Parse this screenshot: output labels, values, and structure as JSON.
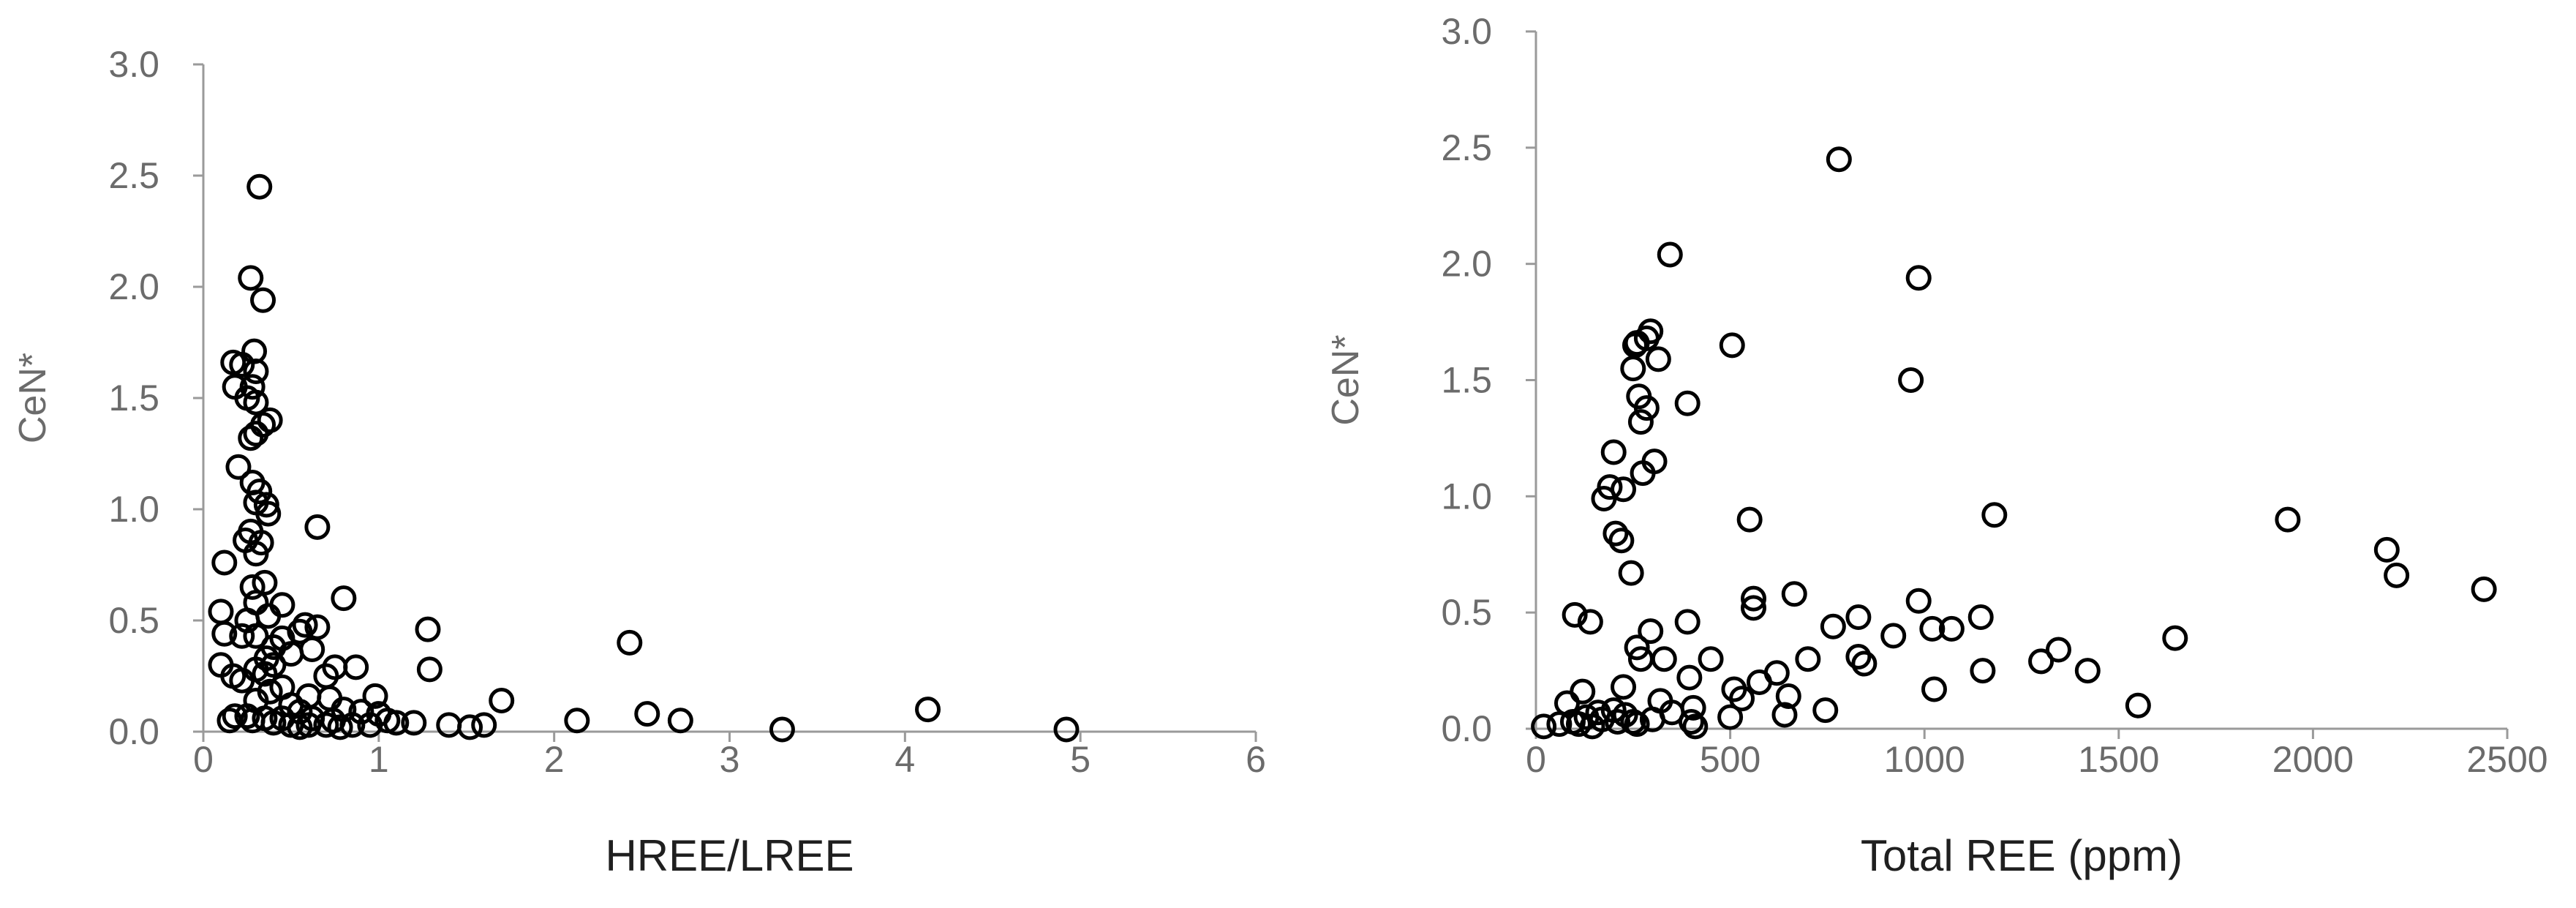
{
  "chart_data": [
    {
      "type": "scatter",
      "title": "",
      "xlabel": "HREE/LREE",
      "ylabel": "CeN*",
      "xlim": [
        0,
        6
      ],
      "ylim": [
        0,
        3
      ],
      "x_ticks": [
        "0",
        "1",
        "2",
        "3",
        "4",
        "5",
        "6"
      ],
      "y_ticks": [
        "0.0",
        "0.5",
        "1.0",
        "1.5",
        "2.0",
        "2.5",
        "3.0"
      ],
      "grid": false,
      "legend": "none",
      "marker": "open-circle",
      "series": [
        {
          "points": [
            [
              0.32,
              2.45
            ],
            [
              0.27,
              2.04
            ],
            [
              0.34,
              1.94
            ],
            [
              0.29,
              1.71
            ],
            [
              0.17,
              1.66
            ],
            [
              0.22,
              1.65
            ],
            [
              0.3,
              1.62
            ],
            [
              0.18,
              1.55
            ],
            [
              0.28,
              1.55
            ],
            [
              0.25,
              1.5
            ],
            [
              0.3,
              1.48
            ],
            [
              0.38,
              1.4
            ],
            [
              0.34,
              1.38
            ],
            [
              0.3,
              1.34
            ],
            [
              0.27,
              1.32
            ],
            [
              0.2,
              1.19
            ],
            [
              0.28,
              1.12
            ],
            [
              0.32,
              1.08
            ],
            [
              0.3,
              1.03
            ],
            [
              0.36,
              1.02
            ],
            [
              0.37,
              0.98
            ],
            [
              0.65,
              0.92
            ],
            [
              0.27,
              0.9
            ],
            [
              0.24,
              0.86
            ],
            [
              0.33,
              0.85
            ],
            [
              0.3,
              0.8
            ],
            [
              0.12,
              0.76
            ],
            [
              0.35,
              0.67
            ],
            [
              0.28,
              0.65
            ],
            [
              0.3,
              0.58
            ],
            [
              0.8,
              0.6
            ],
            [
              0.45,
              0.57
            ],
            [
              0.1,
              0.54
            ],
            [
              0.37,
              0.52
            ],
            [
              0.25,
              0.5
            ],
            [
              0.58,
              0.48
            ],
            [
              0.65,
              0.47
            ],
            [
              0.55,
              0.45
            ],
            [
              1.28,
              0.46
            ],
            [
              0.12,
              0.44
            ],
            [
              0.22,
              0.43
            ],
            [
              0.3,
              0.43
            ],
            [
              0.45,
              0.42
            ],
            [
              2.43,
              0.4
            ],
            [
              0.4,
              0.38
            ],
            [
              0.62,
              0.37
            ],
            [
              0.5,
              0.35
            ],
            [
              0.36,
              0.33
            ],
            [
              0.1,
              0.3
            ],
            [
              0.4,
              0.3
            ],
            [
              0.75,
              0.29
            ],
            [
              0.3,
              0.28
            ],
            [
              0.87,
              0.29
            ],
            [
              1.29,
              0.28
            ],
            [
              0.35,
              0.26
            ],
            [
              0.7,
              0.25
            ],
            [
              0.17,
              0.25
            ],
            [
              0.22,
              0.23
            ],
            [
              0.45,
              0.2
            ],
            [
              0.38,
              0.18
            ],
            [
              0.6,
              0.16
            ],
            [
              0.72,
              0.15
            ],
            [
              0.98,
              0.16
            ],
            [
              0.3,
              0.14
            ],
            [
              1.7,
              0.14
            ],
            [
              0.5,
              0.12
            ],
            [
              0.8,
              0.1
            ],
            [
              0.55,
              0.09
            ],
            [
              0.9,
              0.09
            ],
            [
              1.0,
              0.08
            ],
            [
              4.13,
              0.1
            ],
            [
              2.53,
              0.08
            ],
            [
              0.18,
              0.07
            ],
            [
              0.25,
              0.07
            ],
            [
              0.35,
              0.06
            ],
            [
              0.45,
              0.06
            ],
            [
              0.62,
              0.06
            ],
            [
              0.74,
              0.05
            ],
            [
              0.15,
              0.05
            ],
            [
              0.28,
              0.05
            ],
            [
              1.05,
              0.05
            ],
            [
              1.1,
              0.04
            ],
            [
              1.2,
              0.04
            ],
            [
              2.13,
              0.05
            ],
            [
              2.72,
              0.05
            ],
            [
              0.4,
              0.04
            ],
            [
              0.5,
              0.03
            ],
            [
              0.6,
              0.03
            ],
            [
              0.7,
              0.03
            ],
            [
              0.85,
              0.03
            ],
            [
              0.95,
              0.03
            ],
            [
              1.4,
              0.03
            ],
            [
              1.6,
              0.03
            ],
            [
              0.55,
              0.02
            ],
            [
              0.78,
              0.02
            ],
            [
              1.52,
              0.02
            ],
            [
              3.3,
              0.01
            ],
            [
              4.92,
              0.01
            ]
          ]
        }
      ]
    },
    {
      "type": "scatter",
      "title": "",
      "xlabel": "Total REE (ppm)",
      "ylabel": "CeN*",
      "xlim": [
        0,
        2500
      ],
      "ylim": [
        0,
        3
      ],
      "x_ticks": [
        "0",
        "500",
        "1000",
        "1500",
        "2000",
        "2500"
      ],
      "y_ticks": [
        "0.0",
        "0.5",
        "1.0",
        "1.5",
        "2.0",
        "2.5",
        "3.0"
      ],
      "grid": false,
      "legend": "none",
      "marker": "open-circle",
      "series": [
        {
          "points": [
            [
              780,
              2.45
            ],
            [
              345,
              2.04
            ],
            [
              985,
              1.94
            ],
            [
              295,
              1.71
            ],
            [
              285,
              1.68
            ],
            [
              260,
              1.66
            ],
            [
              255,
              1.65
            ],
            [
              505,
              1.65
            ],
            [
              315,
              1.59
            ],
            [
              250,
              1.55
            ],
            [
              965,
              1.5
            ],
            [
              265,
              1.43
            ],
            [
              390,
              1.4
            ],
            [
              285,
              1.38
            ],
            [
              270,
              1.32
            ],
            [
              200,
              1.19
            ],
            [
              305,
              1.15
            ],
            [
              275,
              1.1
            ],
            [
              190,
              1.04
            ],
            [
              225,
              1.03
            ],
            [
              175,
              0.99
            ],
            [
              550,
              0.9
            ],
            [
              1180,
              0.92
            ],
            [
              1935,
              0.9
            ],
            [
              205,
              0.84
            ],
            [
              220,
              0.81
            ],
            [
              2190,
              0.77
            ],
            [
              245,
              0.67
            ],
            [
              2215,
              0.66
            ],
            [
              2440,
              0.6
            ],
            [
              665,
              0.58
            ],
            [
              560,
              0.56
            ],
            [
              985,
              0.55
            ],
            [
              560,
              0.52
            ],
            [
              100,
              0.49
            ],
            [
              830,
              0.48
            ],
            [
              1145,
              0.48
            ],
            [
              390,
              0.46
            ],
            [
              140,
              0.46
            ],
            [
              765,
              0.44
            ],
            [
              1020,
              0.43
            ],
            [
              1070,
              0.43
            ],
            [
              295,
              0.42
            ],
            [
              920,
              0.4
            ],
            [
              1645,
              0.39
            ],
            [
              260,
              0.35
            ],
            [
              330,
              0.3
            ],
            [
              1345,
              0.34
            ],
            [
              450,
              0.3
            ],
            [
              700,
              0.3
            ],
            [
              830,
              0.31
            ],
            [
              1300,
              0.29
            ],
            [
              845,
              0.28
            ],
            [
              270,
              0.3
            ],
            [
              395,
              0.22
            ],
            [
              1150,
              0.25
            ],
            [
              1420,
              0.25
            ],
            [
              620,
              0.24
            ],
            [
              575,
              0.2
            ],
            [
              510,
              0.17
            ],
            [
              1025,
              0.17
            ],
            [
              225,
              0.18
            ],
            [
              120,
              0.16
            ],
            [
              650,
              0.14
            ],
            [
              80,
              0.11
            ],
            [
              530,
              0.13
            ],
            [
              320,
              0.12
            ],
            [
              745,
              0.08
            ],
            [
              1550,
              0.1
            ],
            [
              405,
              0.09
            ],
            [
              200,
              0.08
            ],
            [
              160,
              0.07
            ],
            [
              350,
              0.07
            ],
            [
              500,
              0.05
            ],
            [
              640,
              0.06
            ],
            [
              230,
              0.06
            ],
            [
              130,
              0.05
            ],
            [
              170,
              0.04
            ],
            [
              300,
              0.04
            ],
            [
              95,
              0.03
            ],
            [
              210,
              0.03
            ],
            [
              250,
              0.03
            ],
            [
              400,
              0.03
            ],
            [
              20,
              0.01
            ],
            [
              60,
              0.02
            ],
            [
              110,
              0.02
            ],
            [
              260,
              0.02
            ],
            [
              145,
              0.01
            ],
            [
              410,
              0.01
            ]
          ]
        }
      ]
    }
  ]
}
